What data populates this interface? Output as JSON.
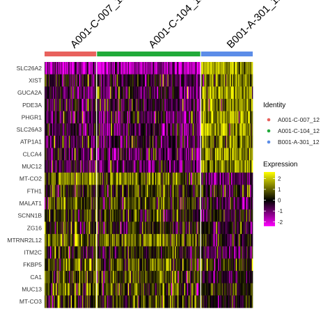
{
  "chart_data": {
    "type": "heatmap",
    "genes": [
      "SLC26A2",
      "XIST",
      "GUCA2A",
      "PDE3A",
      "PHGR1",
      "SLC26A3",
      "ATP1A1",
      "CLCA4",
      "MUC12",
      "MT-CO2",
      "FTH1",
      "MALAT1",
      "SCNN1B",
      "ZG16",
      "MTRNR2L12",
      "ITM2C",
      "FKBP5",
      "CA1",
      "MUC13",
      "MT-CO3"
    ],
    "groups": [
      {
        "name": "A001-C-007_12",
        "label": "A001-C-007_12",
        "color": "#E8625D",
        "cells": 55
      },
      {
        "name": "A001-C-104_12",
        "label": "A001-C-104_12",
        "color": "#21AA3A",
        "cells": 110
      },
      {
        "name": "B001-A-301_12",
        "label": "B001-A-301_12",
        "color": "#5C8DE8",
        "cells": 55
      }
    ],
    "identity_legend": {
      "title": "Identity",
      "entries": [
        "A001-C-007_12",
        "A001-C-104_12",
        "B001-A-301_12"
      ]
    },
    "expression_legend": {
      "title": "Expression",
      "range": [
        -2.4,
        2.6
      ],
      "ticks": [
        2,
        1,
        0,
        -1,
        -2
      ],
      "colors": [
        "#FF00FF",
        "#000000",
        "#FFFF00"
      ]
    },
    "mean_expression": [
      [
        -1.5,
        -1.4,
        1.5
      ],
      [
        -0.3,
        -0.3,
        1.0
      ],
      [
        -0.5,
        -0.4,
        1.3
      ],
      [
        -0.4,
        -0.4,
        1.0
      ],
      [
        -0.6,
        -0.5,
        1.2
      ],
      [
        -0.5,
        -0.5,
        1.3
      ],
      [
        -0.4,
        -0.3,
        0.9
      ],
      [
        -0.5,
        -0.5,
        1.2
      ],
      [
        -0.5,
        -0.4,
        1.0
      ],
      [
        0.9,
        0.8,
        -0.9
      ],
      [
        0.3,
        0.4,
        -0.2
      ],
      [
        0.6,
        0.5,
        -0.4
      ],
      [
        0.3,
        0.3,
        -0.2
      ],
      [
        0.2,
        0.2,
        -0.3
      ],
      [
        0.9,
        0.9,
        -0.2
      ],
      [
        0.1,
        0.1,
        -0.4
      ],
      [
        0.6,
        0.6,
        0.2
      ],
      [
        0.5,
        0.4,
        -0.3
      ],
      [
        0.6,
        0.6,
        0.1
      ],
      [
        0.4,
        0.4,
        -0.2
      ]
    ]
  }
}
